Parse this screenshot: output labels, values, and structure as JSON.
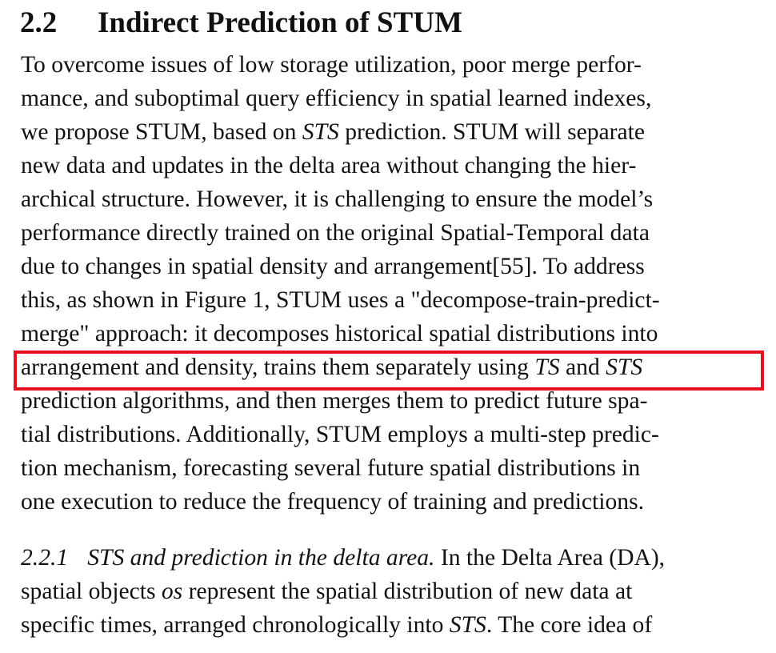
{
  "section": {
    "number": "2.2",
    "title": "Indirect Prediction of STUM"
  },
  "paragraph_lines": [
    [
      "To overcome issues of low storage utilization, poor merge perfor-"
    ],
    [
      "mance, and suboptimal query efficiency in spatial learned indexes,"
    ],
    [
      "we propose STUM, based on ",
      "STS",
      " prediction. STUM will separate"
    ],
    [
      "new data and updates in the delta area without changing the hier-"
    ],
    [
      "archical structure. However, it is challenging to ensure the model’s"
    ],
    [
      "performance directly trained on the original Spatial-Temporal data"
    ],
    [
      "due to changes in spatial density and arrangement[55]. To address"
    ],
    [
      "this, as shown in Figure 1, STUM uses a \"decompose-train-predict-"
    ],
    [
      "merge\" approach: it decomposes historical spatial distributions into"
    ],
    [
      "arrangement and density, trains them separately using ",
      "TS",
      " and ",
      "STS"
    ],
    [
      "prediction algorithms, and then merges them to predict future spa-"
    ],
    [
      "tial distributions. Additionally, STUM employs a multi-step predic-"
    ],
    [
      "tion mechanism, forecasting several future spatial distributions in"
    ],
    [
      "one execution to reduce the frequency of training and predictions."
    ]
  ],
  "subsection": {
    "number": "2.2.1",
    "title": "STS and prediction in the delta area.",
    "lines": [
      [
        "In the Delta Area (DA),"
      ],
      [
        "spatial objects ",
        "os",
        " represent the spatial distribution of new data at"
      ],
      [
        "specific times, arranged chronologically into ",
        "STS",
        ". The core idea of"
      ]
    ]
  },
  "highlight": {
    "color": "#e8101e",
    "line_index": 9
  }
}
